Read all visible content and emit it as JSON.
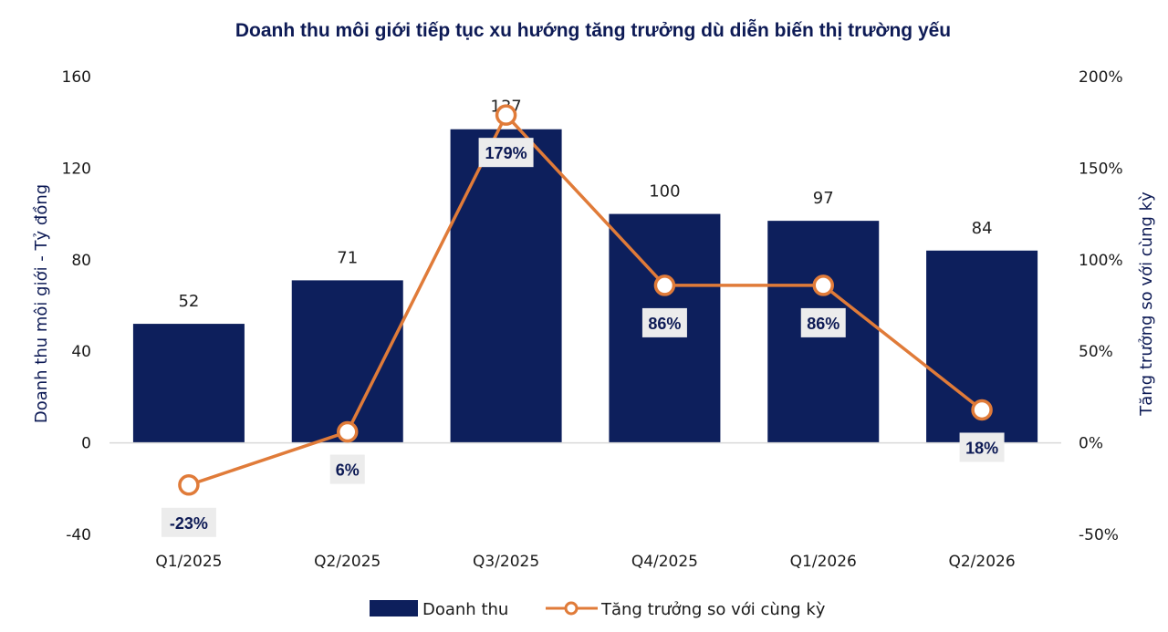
{
  "chart_data": {
    "type": "bar",
    "title": "Doanh thu môi giới tiếp tục xu hướng tăng trưởng dù diễn biến thị trường yếu",
    "categories": [
      "Q1/2025",
      "Q2/2025",
      "Q3/2025",
      "Q4/2025",
      "Q1/2026",
      "Q2/2026"
    ],
    "series": [
      {
        "name": "Doanh thu",
        "type": "bar",
        "axis": "left",
        "values": [
          52,
          71,
          137,
          100,
          97,
          84
        ],
        "labels": [
          "52",
          "71",
          "137",
          "100",
          "97",
          "84"
        ],
        "color": "#0d1f5c"
      },
      {
        "name": "Tăng trưởng so với cùng kỳ",
        "type": "line",
        "axis": "right",
        "values": [
          -23,
          6,
          179,
          86,
          86,
          18
        ],
        "labels": [
          "-23%",
          "6%",
          "179%",
          "86%",
          "86%",
          "18%"
        ],
        "color": "#e07b39"
      }
    ],
    "ylabel": "Doanh thu môi giới - Tỷ đồng",
    "y2label": "Tăng trưởng so với cùng kỳ",
    "ylim": [
      -40,
      160
    ],
    "yticks": [
      "-40",
      "0",
      "40",
      "80",
      "120",
      "160"
    ],
    "y2lim": [
      -50,
      200
    ],
    "y2ticks": [
      "-50%",
      "0%",
      "50%",
      "100%",
      "150%",
      "200%"
    ],
    "grid": false,
    "legend_position": "bottom"
  }
}
